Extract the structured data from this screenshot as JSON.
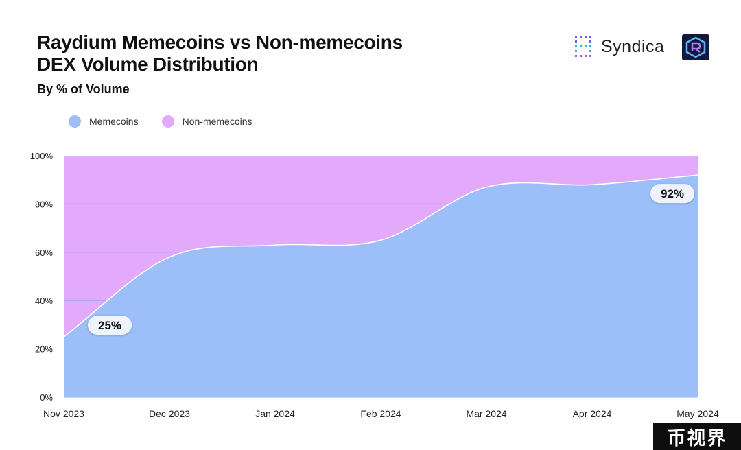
{
  "header": {
    "title_line1": "Raydium Memecoins vs Non-memecoins",
    "title_line2": "DEX Volume Distribution",
    "subtitle": "By % of Volume"
  },
  "brand": {
    "name": "Syndica",
    "icon": "syndica-logo-icon",
    "partner_icon": "raydium-logo-icon"
  },
  "watermark": {
    "text": "币视界"
  },
  "colors": {
    "memecoins": "#9dbff9",
    "non_memecoins": "#e3a9fa",
    "gridline": "#6f95e0"
  },
  "chart_data": {
    "type": "area",
    "stacked": true,
    "title": "Raydium Memecoins vs Non-memecoins DEX Volume Distribution",
    "subtitle": "By % of Volume",
    "x": [
      "Nov 2023",
      "Dec 2023",
      "Jan 2024",
      "Feb 2024",
      "Mar 2024",
      "Apr 2024",
      "May 2024"
    ],
    "series": [
      {
        "name": "Memecoins",
        "values": [
          25,
          58,
          63,
          65,
          87,
          88,
          92
        ]
      },
      {
        "name": "Non-memecoins",
        "values": [
          75,
          42,
          37,
          35,
          13,
          12,
          8
        ]
      }
    ],
    "ylim": [
      0,
      100
    ],
    "yticks": [
      "0%",
      "20%",
      "40%",
      "60%",
      "80%",
      "100%"
    ],
    "grid": true,
    "legend": "top-left",
    "annotations": [
      {
        "series": "Memecoins",
        "x": "Nov 2023",
        "text": "25%"
      },
      {
        "series": "Memecoins",
        "x": "May 2024",
        "text": "92%"
      }
    ]
  }
}
